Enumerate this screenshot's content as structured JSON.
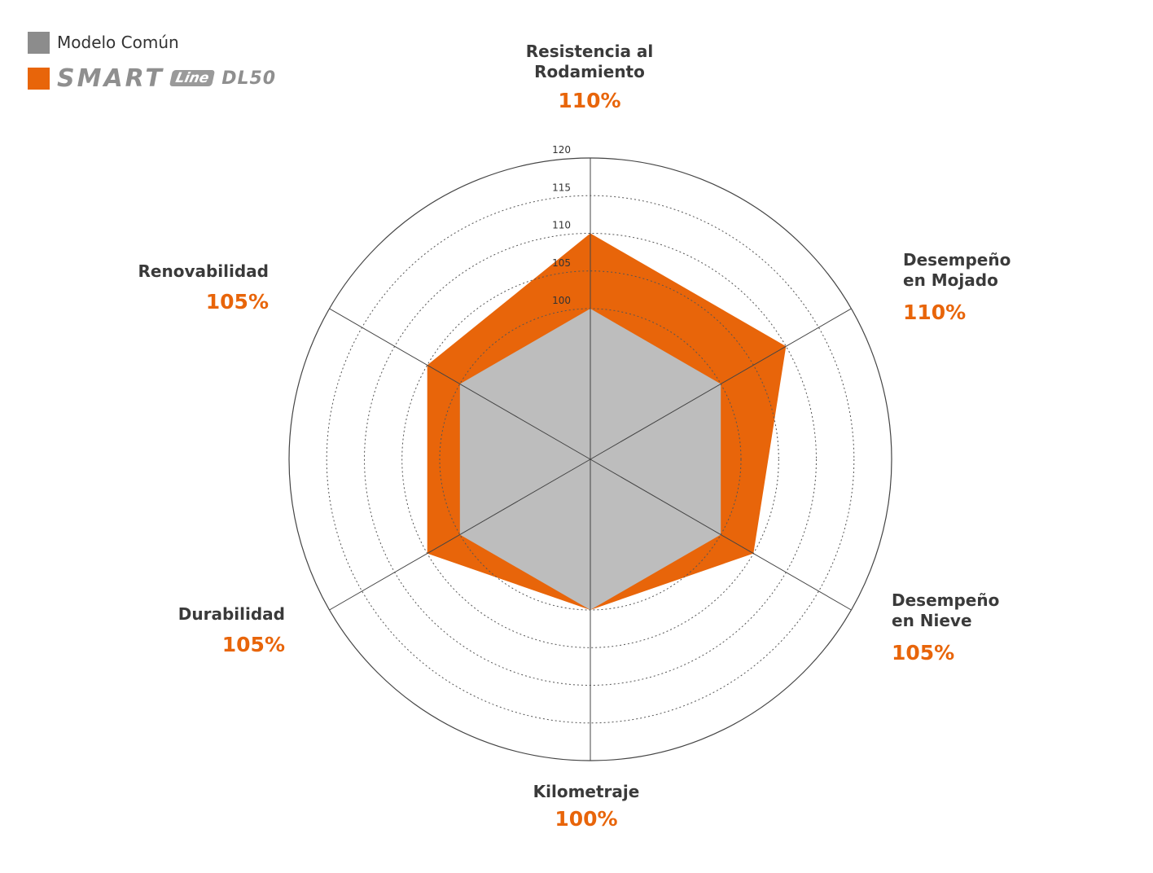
{
  "legend": {
    "common_label": "Modelo Común",
    "common_color": "#8c8c8c",
    "product_color": "#e8650a",
    "logo_smart": "SMART",
    "logo_line": "Line",
    "logo_model": "DL50"
  },
  "chart_data": {
    "type": "radar",
    "rmin": 80,
    "rmax": 120,
    "grid_rings": [
      100,
      105,
      110,
      115,
      120
    ],
    "tick_labels": [
      "100",
      "105",
      "110",
      "115",
      "120"
    ],
    "axes": [
      {
        "name": "Resistencia al\nRodamiento",
        "value_label": "110%"
      },
      {
        "name": "Desempeño\nen Mojado",
        "value_label": "110%"
      },
      {
        "name": "Desempeño\nen Nieve",
        "value_label": "105%"
      },
      {
        "name": "Kilometraje",
        "value_label": "100%"
      },
      {
        "name": "Durabilidad",
        "value_label": "105%"
      },
      {
        "name": "Renovabilidad",
        "value_label": "105%"
      }
    ],
    "series": [
      {
        "name": "Modelo Común",
        "values": [
          100,
          100,
          100,
          100,
          100,
          100
        ],
        "color": "#bdbdbd"
      },
      {
        "name": "SMART Line DL50",
        "values": [
          110,
          110,
          105,
          100,
          105,
          105
        ],
        "color": "#e8650a"
      }
    ]
  }
}
